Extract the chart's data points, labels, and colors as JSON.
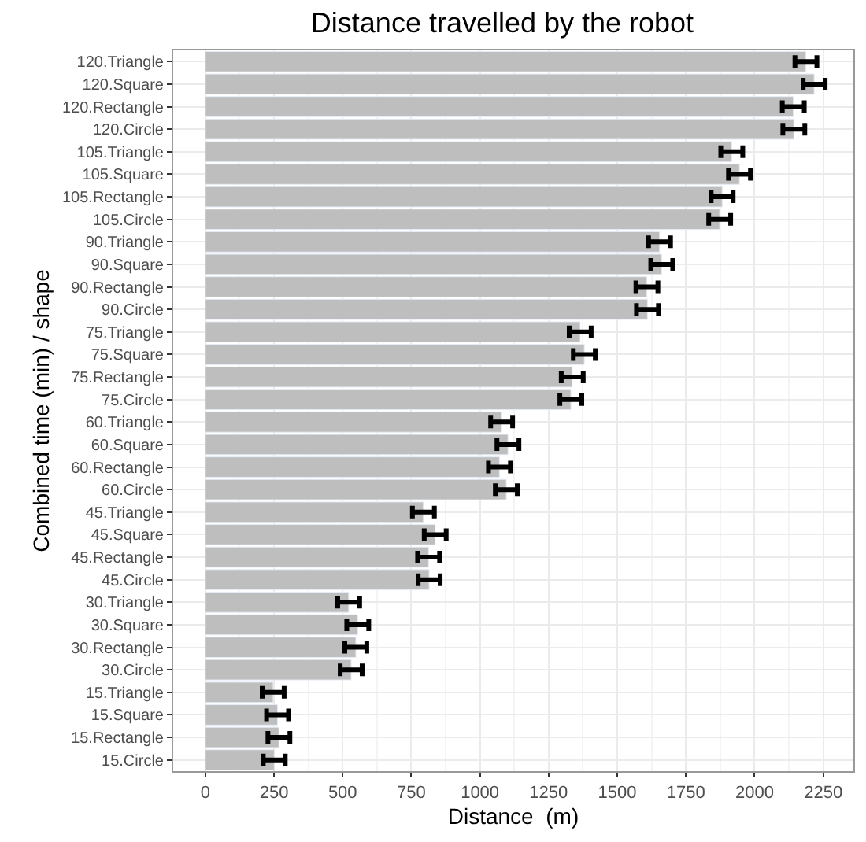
{
  "chart_data": {
    "type": "bar",
    "orientation": "horizontal",
    "title": "Distance travelled by the robot",
    "xlabel": "Distance  (m)",
    "ylabel": "Combined time (min) / shape",
    "categories": [
      "120.Triangle",
      "120.Square",
      "120.Rectangle",
      "120.Circle",
      "105.Triangle",
      "105.Square",
      "105.Rectangle",
      "105.Circle",
      "90.Triangle",
      "90.Square",
      "90.Rectangle",
      "90.Circle",
      "75.Triangle",
      "75.Square",
      "75.Rectangle",
      "75.Circle",
      "60.Triangle",
      "60.Square",
      "60.Rectangle",
      "60.Circle",
      "45.Triangle",
      "45.Square",
      "45.Rectangle",
      "45.Circle",
      "30.Triangle",
      "30.Square",
      "30.Rectangle",
      "30.Circle",
      "15.Triangle",
      "15.Square",
      "15.Rectangle",
      "15.Circle"
    ],
    "series": [
      {
        "color": "#bebebe",
        "values": [
          2187,
          2217,
          2141,
          2143,
          1917,
          1945,
          1882,
          1873,
          1654,
          1662,
          1608,
          1610,
          1365,
          1380,
          1336,
          1331,
          1079,
          1102,
          1071,
          1096,
          794,
          837,
          813,
          815,
          522,
          555,
          548,
          531,
          247,
          263,
          268,
          251
        ],
        "errors": [
          40,
          40,
          40,
          40,
          40,
          40,
          40,
          40,
          40,
          40,
          40,
          40,
          40,
          40,
          40,
          40,
          40,
          40,
          40,
          40,
          40,
          40,
          40,
          40,
          40,
          40,
          40,
          40,
          40,
          40,
          40,
          40
        ]
      }
    ],
    "xlim": [
      -117,
      2360
    ],
    "xticks": [
      0,
      250,
      500,
      750,
      1000,
      1250,
      1500,
      1750,
      2000,
      2250
    ],
    "grid": true
  }
}
